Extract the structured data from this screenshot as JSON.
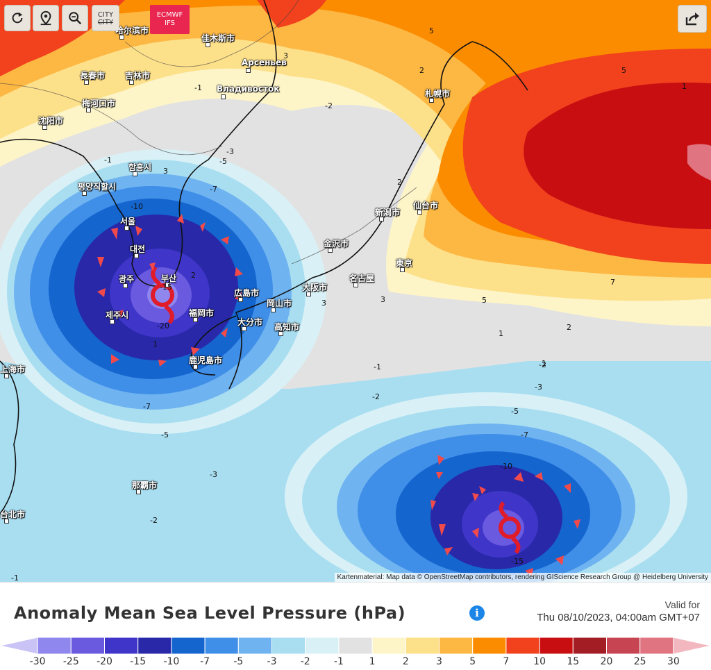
{
  "toolbar": {
    "reset_icon": "refresh-icon",
    "locate_icon": "location-pin-icon",
    "zoom_out_icon": "zoom-out-icon",
    "city_label_top": "CITY",
    "city_label_bottom": "CITY",
    "model_line1": "ECMWF",
    "model_line2": "IFS",
    "share_icon": "share-icon"
  },
  "map": {
    "cities": [
      {
        "name": "吉林市"
      },
      {
        "name": "長春市"
      },
      {
        "name": "哈尔滨市"
      },
      {
        "name": "佳木斯市"
      },
      {
        "name": "Арсеньев"
      },
      {
        "name": "Владивосток"
      },
      {
        "name": "梅河口市"
      },
      {
        "name": "沈阳市"
      },
      {
        "name": "함흥시"
      },
      {
        "name": "평양직할시"
      },
      {
        "name": "서울"
      },
      {
        "name": "대전"
      },
      {
        "name": "광주"
      },
      {
        "name": "부산"
      },
      {
        "name": "제주시"
      },
      {
        "name": "札幌市"
      },
      {
        "name": "新潟市"
      },
      {
        "name": "仙台市"
      },
      {
        "name": "金沢市"
      },
      {
        "name": "東京"
      },
      {
        "name": "名古屋"
      },
      {
        "name": "大阪市"
      },
      {
        "name": "広島市"
      },
      {
        "name": "岡山市"
      },
      {
        "name": "福岡市"
      },
      {
        "name": "大分市"
      },
      {
        "name": "高知市"
      },
      {
        "name": "鹿児島市"
      },
      {
        "name": "上海市"
      },
      {
        "name": "那覇市"
      },
      {
        "name": "台北市"
      }
    ],
    "isobar_labels": [
      "5",
      "3",
      "2",
      "-1",
      "-2",
      "-3",
      "-5",
      "-7",
      "-10",
      "-15",
      "-20",
      "1",
      "2",
      "3",
      "5",
      "7",
      "1",
      "-1",
      "-2",
      "-3",
      "-5",
      "-7",
      "-10",
      "-15",
      "-2",
      "-3",
      "-5",
      "-7",
      "-2",
      "-1",
      "3",
      "2",
      "1",
      "-1",
      "2",
      "3",
      "5",
      "1"
    ],
    "attribution": "Kartenmaterial: Map data © OpenStreetMap contributors, rendering GIScience Research Group @ Heidelberg University"
  },
  "legend": {
    "title": "Anomaly Mean Sea Level Pressure (hPa)",
    "info_icon": "info-icon",
    "valid_label": "Valid for",
    "valid_date": "Thu 08/10/2023, 04:00am GMT+07",
    "ticks": [
      "-30",
      "-25",
      "-20",
      "-15",
      "-10",
      "-7",
      "-5",
      "-3",
      "-2",
      "-1",
      "1",
      "2",
      "3",
      "5",
      "7",
      "10",
      "15",
      "20",
      "25",
      "30"
    ],
    "colors": [
      "#c9c4f5",
      "#8f86ee",
      "#6a5ae0",
      "#3f35c9",
      "#2828a8",
      "#1565cf",
      "#3f8ee8",
      "#6fb3f0",
      "#a9def1",
      "#d9f1f6",
      "#e2e2e2",
      "#fdf4c8",
      "#fde08a",
      "#fdb743",
      "#fb8c00",
      "#f1411d",
      "#c90e12",
      "#a31e24",
      "#c74452",
      "#e07581",
      "#f3b7bf"
    ]
  }
}
